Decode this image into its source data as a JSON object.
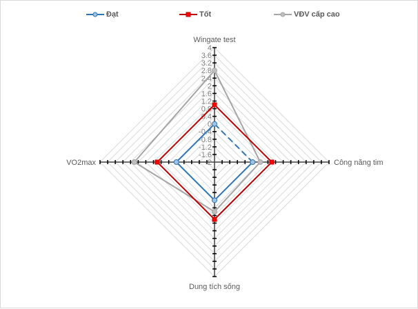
{
  "chart_data": {
    "type": "radar",
    "title": "",
    "categories": [
      "Wingate test",
      "Công năng tim",
      "Dung tích sống",
      "VO2max"
    ],
    "axis": {
      "min": -2,
      "max": 4,
      "step": 0.4,
      "tick_labels": [
        "4",
        "3.6",
        "3.2",
        "2.8",
        "2.4",
        "2",
        "1.6",
        "1.2",
        "0.8",
        "0.4",
        "0",
        "-0.4",
        "-0.8",
        "-1.2",
        "-1.6",
        "-2"
      ]
    },
    "series": [
      {
        "name": "Đạt",
        "color": "#2e75b6",
        "marker_fill": "#9dc3e6",
        "values": [
          0,
          0,
          0,
          0
        ]
      },
      {
        "name": "Tốt",
        "color": "#c00000",
        "marker_fill": "#ff0000",
        "values": [
          1.0,
          1.0,
          1.0,
          1.0
        ]
      },
      {
        "name": "VĐV cấp cao",
        "color": "#a5a5a5",
        "marker_fill": "#bfbfbf",
        "values": [
          2.8,
          0.4,
          0.6,
          2.2
        ]
      }
    ],
    "legend_position": "top",
    "grid": true
  },
  "legend": {
    "items": [
      {
        "label": "Đạt",
        "color": "#2e75b6"
      },
      {
        "label": "Tốt",
        "color": "#c00000"
      },
      {
        "label": "VĐV cấp cao",
        "color": "#a5a5a5"
      }
    ]
  }
}
